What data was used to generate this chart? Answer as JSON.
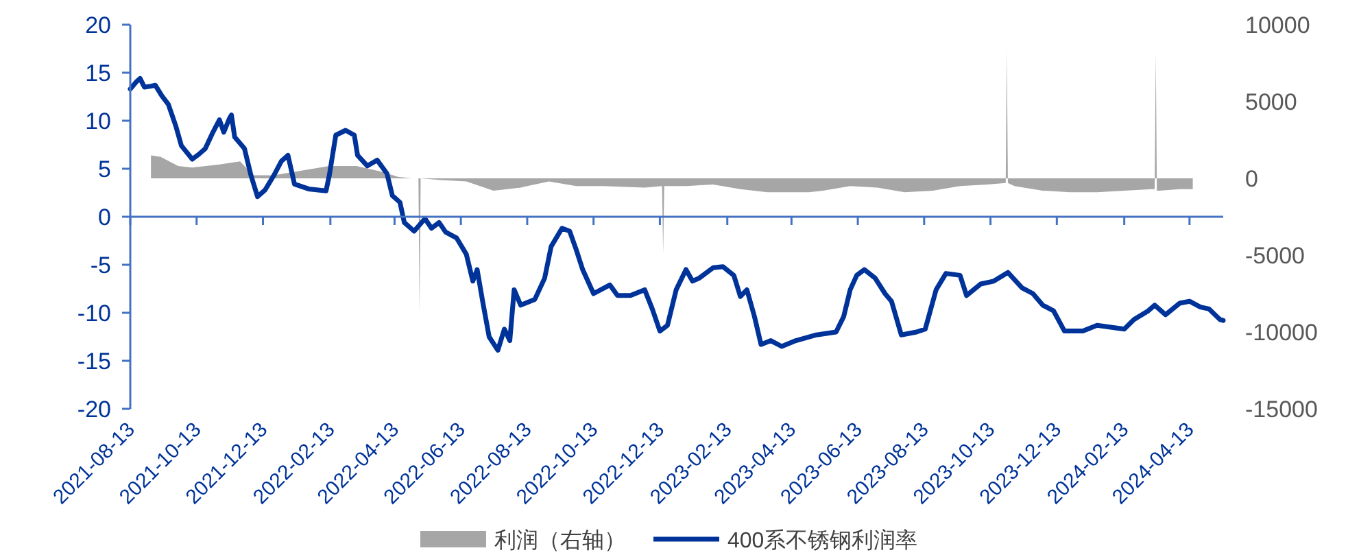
{
  "chart_data": {
    "type": "line",
    "legend": "bottom",
    "xlim": [
      "2021-08-13",
      "2024-05-14"
    ],
    "xticks": [
      "2021-08-13",
      "2021-10-13",
      "2021-12-13",
      "2022-02-13",
      "2022-04-13",
      "2022-06-13",
      "2022-08-13",
      "2022-10-13",
      "2022-12-13",
      "2023-02-13",
      "2023-04-13",
      "2023-06-13",
      "2023-08-13",
      "2023-10-13",
      "2023-12-13",
      "2024-02-13",
      "2024-04-13"
    ],
    "ylim": [
      -20,
      20
    ],
    "yticks": [
      -20,
      -15,
      -10,
      -5,
      0,
      5,
      10,
      15,
      20
    ],
    "y2lim": [
      -15000,
      10000
    ],
    "ref_lines": [
      {
        "axis": "y",
        "value": 0,
        "color": "#4472c4"
      }
    ],
    "y2ticks": [
      -15000,
      -10000,
      -5000,
      0,
      5000,
      10000
    ],
    "series": [
      {
        "name": "利润（右轴）",
        "type": "area",
        "axis": "y2",
        "color": "#a6a6a6",
        "x": [
          "2021-09-01",
          "2021-09-10",
          "2021-09-26",
          "2021-10-09",
          "2021-11-03",
          "2021-11-22",
          "2021-12-04",
          "2021-12-23",
          "2022-02-12",
          "2022-03-09",
          "2022-04-03",
          "2022-04-16",
          "2022-04-29",
          "2022-05-05",
          "2022-05-06",
          "2022-05-07",
          "2022-05-24",
          "2022-06-18",
          "2022-07-13",
          "2022-08-07",
          "2022-09-02",
          "2022-09-27",
          "2022-10-22",
          "2022-11-29",
          "2022-12-15",
          "2022-12-16",
          "2022-12-17",
          "2022-12-24",
          "2023-01-06",
          "2023-01-31",
          "2023-02-25",
          "2023-03-22",
          "2023-04-29",
          "2023-05-12",
          "2023-06-06",
          "2023-07-01",
          "2023-07-26",
          "2023-08-21",
          "2023-09-15",
          "2023-10-10",
          "2023-10-27",
          "2023-10-28",
          "2023-10-29",
          "2023-11-04",
          "2023-11-30",
          "2023-12-25",
          "2024-01-19",
          "2024-02-13",
          "2024-03-09",
          "2024-03-12",
          "2024-03-13",
          "2024-03-14",
          "2024-03-16",
          "2024-04-04",
          "2024-04-16"
        ],
        "values": [
          1500,
          1400,
          800,
          700,
          900,
          1100,
          200,
          200,
          800,
          800,
          400,
          100,
          0,
          0,
          -8700,
          0,
          -100,
          -200,
          -800,
          -600,
          -200,
          -500,
          -500,
          -600,
          -500,
          -4900,
          -500,
          -500,
          -500,
          -400,
          -700,
          -900,
          -900,
          -800,
          -500,
          -600,
          -900,
          -800,
          -500,
          -400,
          -300,
          8300,
          -300,
          -500,
          -800,
          -900,
          -900,
          -800,
          -700,
          -700,
          8100,
          -800,
          -800,
          -700,
          -700
        ]
      },
      {
        "name": "400系不锈钢利润率",
        "color": "#003399",
        "x": [
          "2021-08-13",
          "2021-08-19",
          "2021-08-22",
          "2021-08-26",
          "2021-09-01",
          "2021-09-05",
          "2021-09-11",
          "2021-09-17",
          "2021-09-24",
          "2021-09-29",
          "2021-10-09",
          "2021-10-15",
          "2021-10-21",
          "2021-10-28",
          "2021-11-03",
          "2021-11-07",
          "2021-11-12",
          "2021-11-14",
          "2021-11-17",
          "2021-11-26",
          "2021-12-02",
          "2021-12-08",
          "2021-12-15",
          "2021-12-23",
          "2021-12-30",
          "2022-01-05",
          "2022-01-11",
          "2022-01-24",
          "2022-02-09",
          "2022-02-12",
          "2022-02-18",
          "2022-02-27",
          "2022-03-07",
          "2022-03-10",
          "2022-03-19",
          "2022-03-28",
          "2022-04-06",
          "2022-04-11",
          "2022-04-18",
          "2022-04-22",
          "2022-05-01",
          "2022-05-11",
          "2022-05-17",
          "2022-05-24",
          "2022-05-30",
          "2022-06-09",
          "2022-06-18",
          "2022-06-24",
          "2022-06-28",
          "2022-07-03",
          "2022-07-09",
          "2022-07-17",
          "2022-07-23",
          "2022-07-28",
          "2022-08-01",
          "2022-08-07",
          "2022-08-20",
          "2022-08-29",
          "2022-09-04",
          "2022-09-14",
          "2022-09-21",
          "2022-09-27",
          "2022-10-03",
          "2022-10-13",
          "2022-10-28",
          "2022-11-04",
          "2022-11-16",
          "2022-11-29",
          "2022-12-06",
          "2022-12-13",
          "2022-12-20",
          "2022-12-28",
          "2023-01-06",
          "2023-01-12",
          "2023-01-18",
          "2023-01-31",
          "2023-02-09",
          "2023-02-19",
          "2023-02-25",
          "2023-03-03",
          "2023-03-10",
          "2023-03-16",
          "2023-03-25",
          "2023-04-04",
          "2023-04-17",
          "2023-05-06",
          "2023-05-24",
          "2023-05-31",
          "2023-06-06",
          "2023-06-12",
          "2023-06-19",
          "2023-06-29",
          "2023-07-08",
          "2023-07-14",
          "2023-07-23",
          "2023-08-06",
          "2023-08-14",
          "2023-08-24",
          "2023-09-02",
          "2023-09-15",
          "2023-09-21",
          "2023-10-04",
          "2023-10-16",
          "2023-10-29",
          "2023-11-11",
          "2023-11-21",
          "2023-11-30",
          "2023-12-10",
          "2023-12-20",
          "2024-01-06",
          "2024-01-19",
          "2024-02-13",
          "2024-02-22",
          "2024-03-06",
          "2024-03-12",
          "2024-03-22",
          "2024-04-04",
          "2024-04-13",
          "2024-04-23",
          "2024-05-01",
          "2024-05-11",
          "2024-05-14"
        ],
        "values": [
          13.3,
          14.1,
          14.4,
          13.5,
          13.6,
          13.7,
          12.6,
          11.7,
          9.4,
          7.4,
          6.0,
          6.5,
          7.1,
          8.8,
          10.1,
          8.8,
          10.2,
          10.6,
          8.3,
          7.1,
          4.3,
          2.1,
          2.8,
          4.3,
          5.8,
          6.4,
          3.4,
          2.9,
          2.7,
          4.3,
          8.5,
          9.0,
          8.5,
          6.4,
          5.3,
          5.9,
          4.5,
          2.2,
          1.5,
          -0.6,
          -1.5,
          -0.2,
          -1.2,
          -0.6,
          -1.6,
          -2.2,
          -3.9,
          -6.7,
          -5.5,
          -8.8,
          -12.5,
          -13.9,
          -11.7,
          -12.9,
          -7.6,
          -9.2,
          -8.6,
          -6.4,
          -3.1,
          -1.2,
          -1.5,
          -3.4,
          -5.5,
          -8.0,
          -7.1,
          -8.2,
          -8.2,
          -7.6,
          -9.6,
          -11.9,
          -11.3,
          -7.6,
          -5.5,
          -6.7,
          -6.4,
          -5.3,
          -5.2,
          -6.1,
          -8.3,
          -7.6,
          -10.4,
          -13.3,
          -12.9,
          -13.5,
          -12.9,
          -12.3,
          -12.0,
          -10.4,
          -7.6,
          -6.1,
          -5.5,
          -6.4,
          -8.0,
          -8.8,
          -12.3,
          -12.0,
          -11.7,
          -7.6,
          -5.9,
          -6.1,
          -8.2,
          -7.0,
          -6.7,
          -5.8,
          -7.4,
          -8.0,
          -9.2,
          -9.8,
          -11.9,
          -11.9,
          -11.3,
          -11.7,
          -10.7,
          -9.8,
          -9.2,
          -10.2,
          -9.0,
          -8.8,
          -9.4,
          -9.6,
          -10.7,
          -10.8
        ]
      }
    ]
  }
}
